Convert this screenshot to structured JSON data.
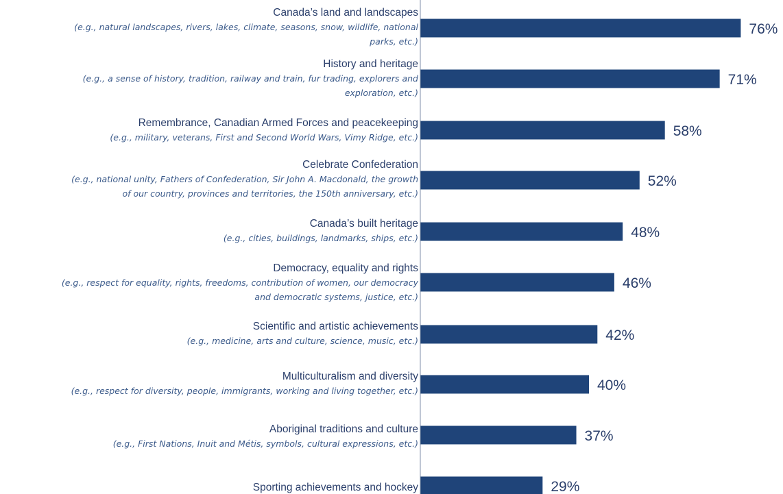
{
  "chart_data": {
    "type": "bar",
    "orientation": "horizontal",
    "bar_color": "#1f4479",
    "text_color": "#2b3f6b",
    "example_color": "#3b5a8a",
    "categories": [
      {
        "label": "Canada’s land and landscapes",
        "example": [
          "(e.g., natural landscapes, rivers, lakes, climate, seasons, snow, wildlife, national",
          "parks, etc.)"
        ],
        "value": 76,
        "value_label": "76%"
      },
      {
        "label": "History and heritage",
        "example": [
          "(e.g., a sense of history, tradition, railway and train, fur trading, explorers and",
          "exploration, etc.)"
        ],
        "value": 71,
        "value_label": "71%"
      },
      {
        "label": "Remembrance, Canadian Armed Forces and peacekeeping",
        "example": [
          "(e.g., military, veterans, First and Second World Wars, Vimy Ridge, etc.)"
        ],
        "value": 58,
        "value_label": "58%"
      },
      {
        "label": "Celebrate Confederation",
        "example": [
          "(e.g., national unity, Fathers of Confederation, Sir John A. Macdonald, the growth",
          "of our country, provinces and territories, the 150th anniversary, etc.)"
        ],
        "value": 52,
        "value_label": "52%"
      },
      {
        "label": "Canada’s built heritage",
        "example": [
          "(e.g., cities, buildings, landmarks, ships, etc.)"
        ],
        "value": 48,
        "value_label": "48%"
      },
      {
        "label": "Democracy, equality and rights",
        "example": [
          "(e.g., respect for equality, rights, freedoms, contribution of women, our democracy",
          "and democratic systems, justice, etc.)"
        ],
        "value": 46,
        "value_label": "46%"
      },
      {
        "label": "Scientific and artistic achievements",
        "example": [
          "(e.g., medicine, arts and culture, science, music, etc.)"
        ],
        "value": 42,
        "value_label": "42%"
      },
      {
        "label": "Multiculturalism and diversity",
        "example": [
          "(e.g., respect for diversity, people, immigrants, working and living together, etc.)"
        ],
        "value": 40,
        "value_label": "40%"
      },
      {
        "label": "Aboriginal traditions and culture",
        "example": [
          "(e.g., First Nations, Inuit and Métis, symbols, cultural expressions, etc.)"
        ],
        "value": 37,
        "value_label": "37%"
      },
      {
        "label": "Sporting achievements and hockey",
        "example": [],
        "value": 29,
        "value_label": "29%"
      }
    ]
  }
}
